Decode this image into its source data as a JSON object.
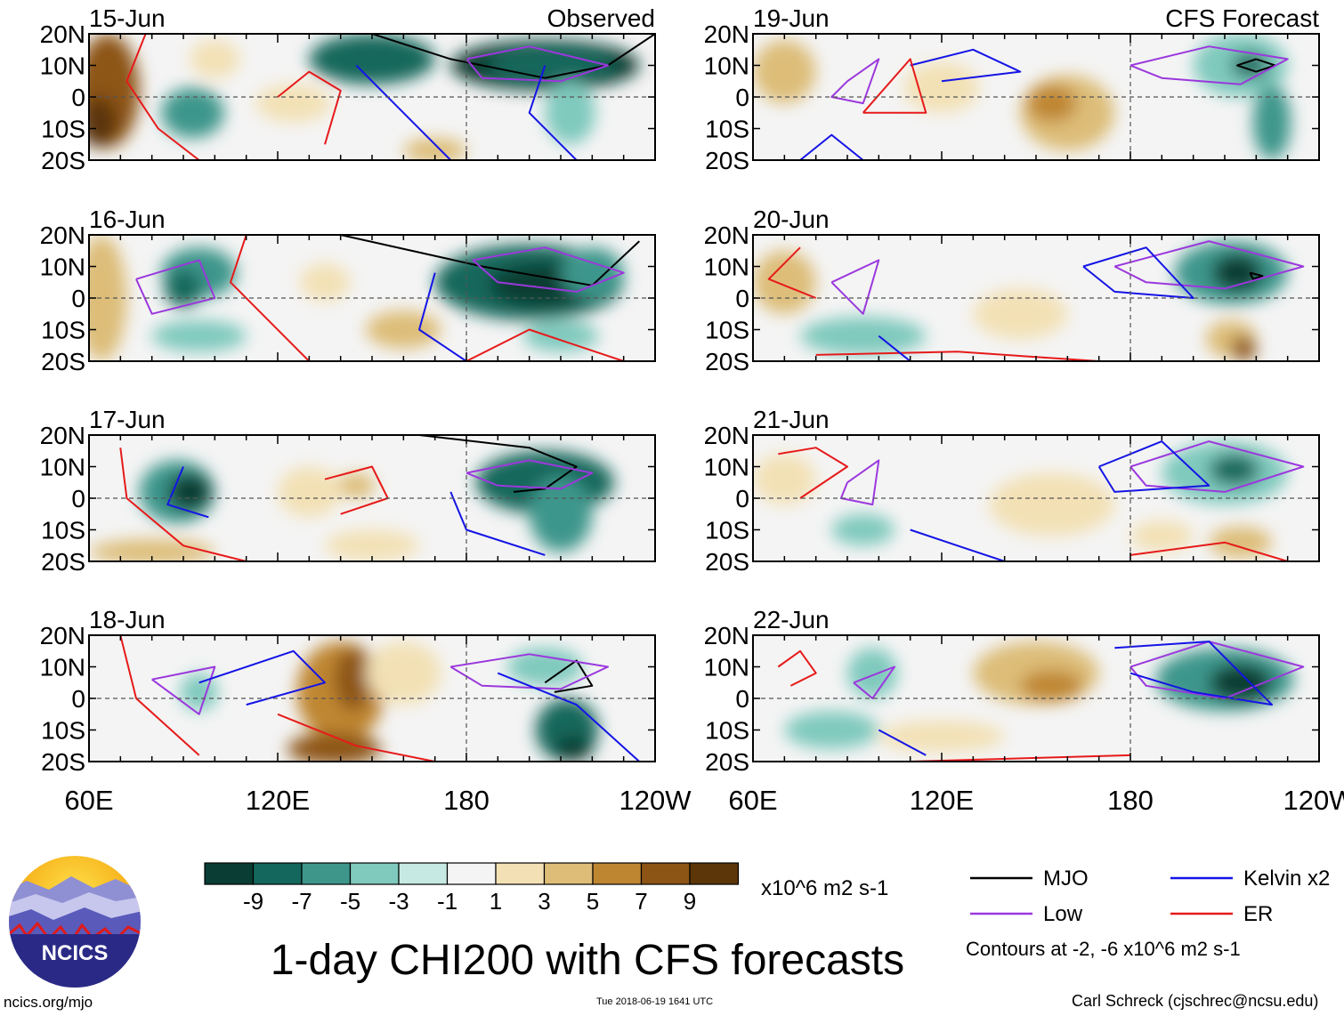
{
  "chart_data": {
    "type": "heatmap",
    "title": "1-day CHI200 with CFS forecasts",
    "x_axis": {
      "tick_labels": [
        "60E",
        "120E",
        "180",
        "120W"
      ],
      "range_deg_east": [
        60,
        240
      ]
    },
    "y_axis": {
      "tick_labels": [
        "20N",
        "10N",
        "0",
        "10S",
        "20S"
      ],
      "range_deg_lat": [
        -20,
        20
      ]
    },
    "left_column_label": "Observed",
    "right_column_label": "CFS Forecast",
    "panels": [
      {
        "date": "15-Jun",
        "column": "Observed"
      },
      {
        "date": "16-Jun",
        "column": "Observed"
      },
      {
        "date": "17-Jun",
        "column": "Observed"
      },
      {
        "date": "18-Jun",
        "column": "Observed"
      },
      {
        "date": "19-Jun",
        "column": "CFS Forecast"
      },
      {
        "date": "20-Jun",
        "column": "CFS Forecast"
      },
      {
        "date": "21-Jun",
        "column": "CFS Forecast"
      },
      {
        "date": "22-Jun",
        "column": "CFS Forecast"
      }
    ],
    "colorbar": {
      "labels": [
        "-9",
        "-7",
        "-5",
        "-3",
        "-1",
        "1",
        "3",
        "5",
        "7",
        "9"
      ],
      "colors": [
        "#0a3d33",
        "#14675c",
        "#3e968b",
        "#7fc9bd",
        "#c6eae3",
        "#f4f4f4",
        "#f3e1b5",
        "#ddbd78",
        "#bf8632",
        "#8d5515",
        "#5c3608"
      ],
      "units": "x10^6 m2 s-1"
    },
    "contour_legend": [
      {
        "name": "MJO",
        "color": "#000000"
      },
      {
        "name": "Kelvin x2",
        "color": "#1414e6"
      },
      {
        "name": "Low",
        "color": "#9b38dd"
      },
      {
        "name": "ER",
        "color": "#e61a1a"
      }
    ],
    "contour_note": "Contours at -2, -6 x10^6 m2 s-1"
  },
  "footer": {
    "logo_text": "NCICS",
    "website": "ncics.org/mjo",
    "timestamp": "Tue 2018-06-19 1641 UTC",
    "credit": "Carl Schreck (cjschrec@ncsu.edu)"
  }
}
